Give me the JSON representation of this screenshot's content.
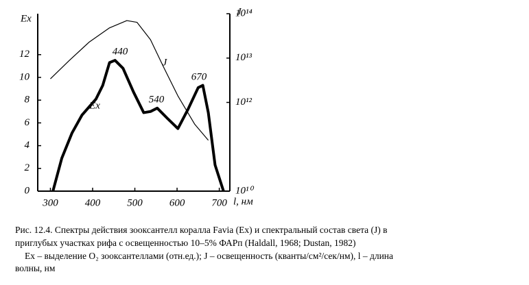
{
  "chart_data": {
    "type": "line",
    "x_label": "l, нм",
    "y_label": "Eх",
    "y2_label": "J",
    "annotations": [
      "440",
      "540",
      "670",
      "J",
      "Eх"
    ],
    "xlim": [
      270,
      725
    ],
    "xticks": [
      300,
      400,
      500,
      600,
      700
    ],
    "ylim": [
      0,
      15.6
    ],
    "yticks": [
      0,
      2,
      4,
      6,
      8,
      10,
      12
    ],
    "y2lim": [
      10000000000.0,
      100000000000000.0
    ],
    "y2_log": true,
    "y2ticks": [
      {
        "value": 10000000000.0,
        "label": "10¹⁰"
      },
      {
        "value": 1000000000000.0,
        "label": "10¹²"
      },
      {
        "value": 10000000000000.0,
        "label": "10¹³"
      },
      {
        "value": 100000000000000.0,
        "label": "10¹⁴"
      }
    ],
    "series": [
      {
        "name": "Eх",
        "color": "#000000",
        "x": [
          306,
          327,
          351,
          375,
          408,
          424,
          440,
          453,
          472,
          497,
          521,
          537,
          553,
          577,
          602,
          626,
          650,
          661,
          674,
          690,
          710
        ],
        "values": [
          0,
          2.9,
          5.1,
          6.7,
          8.1,
          9.3,
          11.3,
          11.5,
          10.8,
          8.7,
          6.9,
          7.0,
          7.3,
          6.4,
          5.5,
          7.2,
          9.1,
          9.3,
          6.9,
          2.3,
          0
        ]
      },
      {
        "name": "J",
        "color": "#000000",
        "axis": "y2",
        "x": [
          300,
          344,
          392,
          440,
          481,
          505,
          537,
          569,
          602,
          642,
          674
        ],
        "values": [
          3400000000000.0,
          8700000000000.0,
          23000000000000.0,
          48000000000000.0,
          70000000000000.0,
          64000000000000.0,
          26000000000000.0,
          6000000000000.0,
          1400000000000.0,
          320000000000.0,
          140000000000.0
        ]
      }
    ]
  },
  "caption": [
    "Рис. 12.4. Спектры действия зооксантелл коралла Favia (Eх) и спектральный состав света (J) в",
    "приглубых участках рифа с освещенностью 10–5% ФАРп (Haldall, 1968; Dustan, 1982)",
    "Eх – выделение O₂ зооксантеллами (отн.ед.); J – освещенность (кванты/см²/сек/нм), l – длина",
    "волны, нм"
  ]
}
